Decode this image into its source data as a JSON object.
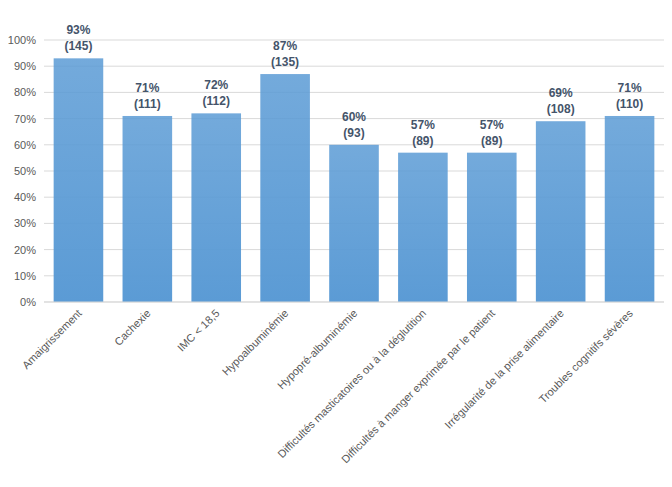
{
  "chart_data": {
    "type": "bar",
    "categories": [
      "Amaigrissement",
      "Cachexie",
      "IMC < 18,5",
      "Hypoalbuminémie",
      "Hypopré-albuminémie",
      "Difficultés masticatoires ou à la déglutition",
      "Difficultés à manger exprimée par le patient",
      "Irrégularité de la prise alimentaire",
      "Troubles cognitifs sévères"
    ],
    "values": [
      93,
      71,
      72,
      87,
      60,
      57,
      57,
      69,
      71
    ],
    "value_labels": [
      "93%",
      "71%",
      "72%",
      "87%",
      "60%",
      "57%",
      "57%",
      "69%",
      "71%"
    ],
    "counts": [
      145,
      111,
      112,
      135,
      93,
      89,
      89,
      108,
      110
    ],
    "count_labels": [
      "(145)",
      "(111)",
      "(112)",
      "(135)",
      "(93)",
      "(89)",
      "(89)",
      "(108)",
      "(110)"
    ],
    "color": "#5b9bd5",
    "ylim": [
      0,
      100
    ],
    "yticks": [
      {
        "value": 0,
        "label": "0%"
      },
      {
        "value": 10,
        "label": "10%"
      },
      {
        "value": 20,
        "label": "20%"
      },
      {
        "value": 30,
        "label": "30%"
      },
      {
        "value": 40,
        "label": "40%"
      },
      {
        "value": 50,
        "label": "50%"
      },
      {
        "value": 60,
        "label": "60%"
      },
      {
        "value": 70,
        "label": "70%"
      },
      {
        "value": 80,
        "label": "80%"
      },
      {
        "value": 90,
        "label": "90%"
      },
      {
        "value": 100,
        "label": "100%"
      }
    ],
    "grid": true,
    "data_labels": true
  }
}
